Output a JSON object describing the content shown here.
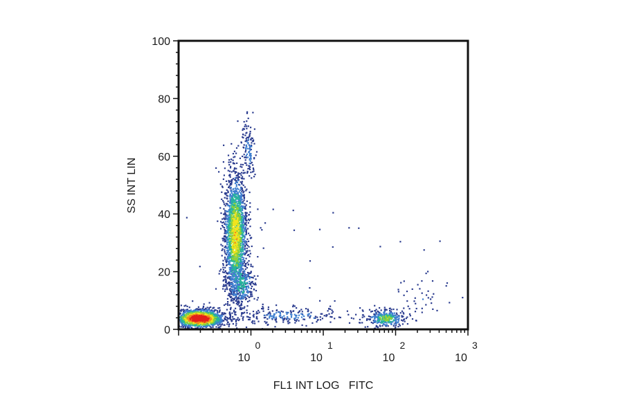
{
  "chart_data": {
    "type": "scatter",
    "title": "",
    "xlabel": "FL1 INT LOG   FITC",
    "ylabel": "SS INT LIN",
    "x_scale": "log",
    "xlim": [
      0.1,
      1000
    ],
    "ylim": [
      0,
      100
    ],
    "x_ticks": [
      {
        "value": 1,
        "base": "10",
        "exp": "0"
      },
      {
        "value": 10,
        "base": "10",
        "exp": "1"
      },
      {
        "value": 100,
        "base": "10",
        "exp": "2"
      },
      {
        "value": 1000,
        "base": "10",
        "exp": "3"
      }
    ],
    "y_ticks": [
      {
        "value": 0,
        "label": "0"
      },
      {
        "value": 20,
        "label": "20"
      },
      {
        "value": 40,
        "label": "40"
      },
      {
        "value": 60,
        "label": "60"
      },
      {
        "value": 80,
        "label": "80"
      },
      {
        "value": 100,
        "label": "100"
      }
    ],
    "grid": false,
    "legend": "none",
    "density_colors": [
      "#2b3c8f",
      "#3f7fd0",
      "#27b59a",
      "#8fd13a",
      "#f2e41d",
      "#f08a1c",
      "#e3201b"
    ],
    "populations": [
      {
        "x_center": 0.19,
        "y_center": 4,
        "x_spread_log": 0.17,
        "y_spread": 1.6,
        "count": 1400,
        "peak_density": 1.0
      },
      {
        "x_center": 0.6,
        "y_center": 33,
        "x_spread_log": 0.08,
        "y_spread": 11,
        "count": 1900,
        "peak_density": 0.6
      },
      {
        "x_center": 0.7,
        "y_center": 16,
        "x_spread_log": 0.1,
        "y_spread": 4,
        "count": 300,
        "peak_density": 0.35
      },
      {
        "x_center": 0.9,
        "y_center": 62,
        "x_spread_log": 0.05,
        "y_spread": 5,
        "count": 130,
        "peak_density": 0.2
      },
      {
        "x_center": 3,
        "y_center": 5,
        "x_spread_log": 0.45,
        "y_spread": 1.4,
        "count": 230,
        "peak_density": 0.2
      },
      {
        "x_center": 72,
        "y_center": 4,
        "x_spread_log": 0.13,
        "y_spread": 1.6,
        "count": 320,
        "peak_density": 0.45
      },
      {
        "x_center": 220,
        "y_center": 11,
        "x_spread_log": 0.2,
        "y_spread": 3.5,
        "count": 40,
        "peak_density": 0.12
      },
      {
        "x_center": 3,
        "y_center": 30,
        "x_spread_log": 1.1,
        "y_spread": 18,
        "count": 45,
        "peak_density": 0.08
      }
    ]
  }
}
